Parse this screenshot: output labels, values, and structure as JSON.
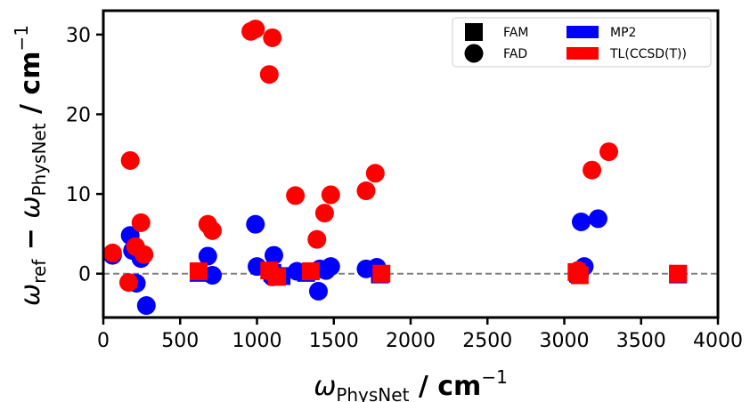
{
  "chart_data": {
    "type": "scatter",
    "title": "",
    "xlabel": {
      "symbol": "ω",
      "sub": "PhysNet",
      "unit": " / cm",
      "sup": "−1"
    },
    "ylabel": {
      "symbol": "ω",
      "sub1": "ref",
      "minus": " − ",
      "symbol2": "ω",
      "sub2": "PhysNet",
      "unit": " / cm",
      "sup": "−1"
    },
    "xlim": [
      0,
      4000
    ],
    "ylim": [
      -5.5,
      33
    ],
    "xticks": [
      0,
      500,
      1000,
      1500,
      2000,
      2500,
      3000,
      3500,
      4000
    ],
    "yticks": [
      0,
      10,
      20,
      30
    ],
    "xtick_labels": [
      "0",
      "500",
      "1000",
      "1500",
      "2000",
      "2500",
      "3000",
      "3500",
      "4000"
    ],
    "ytick_labels": [
      "0",
      "10",
      "20",
      "30"
    ],
    "reference_line": {
      "y": 0,
      "style": "dashed",
      "color": "#808080"
    },
    "grid": false,
    "legend": {
      "placement": "top-right",
      "marker_entries": [
        {
          "label": "FAM",
          "marker": "square"
        },
        {
          "label": "FAD",
          "marker": "circle"
        }
      ],
      "color_entries": [
        {
          "label": "MP2",
          "color": "#0000ff"
        },
        {
          "label": "TL(CCSD(T))",
          "color": "#ff0000"
        }
      ]
    },
    "series": [
      {
        "name": "MP2",
        "color": "#0000ff",
        "molecule": "FAD",
        "marker": "circle",
        "x": [
          60,
          175,
          190,
          215,
          245,
          280,
          680,
          710,
          990,
          1000,
          1100,
          1110,
          1260,
          1400,
          1410,
          1450,
          1480,
          1710,
          1780,
          3100,
          3110,
          3130,
          3220
        ],
        "y": [
          2.3,
          4.8,
          2.9,
          -1.2,
          1.9,
          -4.0,
          2.2,
          -0.2,
          6.2,
          0.9,
          -0.4,
          2.3,
          0.3,
          -2.2,
          0.6,
          0.4,
          0.9,
          0.6,
          0.8,
          0.0,
          6.5,
          0.9,
          6.9
        ]
      },
      {
        "name": "MP2",
        "color": "#0000ff",
        "molecule": "FAM",
        "marker": "square",
        "x": [
          620,
          1100,
          1160,
          1320,
          1800,
          3090,
          3740
        ],
        "y": [
          0.1,
          0.1,
          -0.3,
          0.1,
          -0.1,
          0.0,
          -0.1
        ]
      },
      {
        "name": "TL(CCSD(T))",
        "color": "#ff0000",
        "molecule": "FAD",
        "marker": "circle",
        "x": [
          60,
          165,
          175,
          210,
          245,
          265,
          680,
          710,
          960,
          990,
          1080,
          1100,
          1250,
          1390,
          1440,
          1480,
          1710,
          1770,
          3090,
          3180,
          3290
        ],
        "y": [
          2.6,
          -1.1,
          14.2,
          3.4,
          6.4,
          2.4,
          6.2,
          5.4,
          30.4,
          30.7,
          25.0,
          29.6,
          9.8,
          4.3,
          7.6,
          9.9,
          10.4,
          12.6,
          0.4,
          13.0,
          15.3
        ],
        "extra_point": {
          "x": 1090,
          "y": 0.2
        }
      },
      {
        "name": "TL(CCSD(T))",
        "color": "#ff0000",
        "molecule": "FAM",
        "marker": "square",
        "x": [
          620,
          1080,
          1130,
          1350,
          1810,
          3080,
          3100,
          3740
        ],
        "y": [
          0.3,
          0.4,
          -0.4,
          0.3,
          0.0,
          0.2,
          -0.2,
          0.0
        ]
      }
    ]
  }
}
